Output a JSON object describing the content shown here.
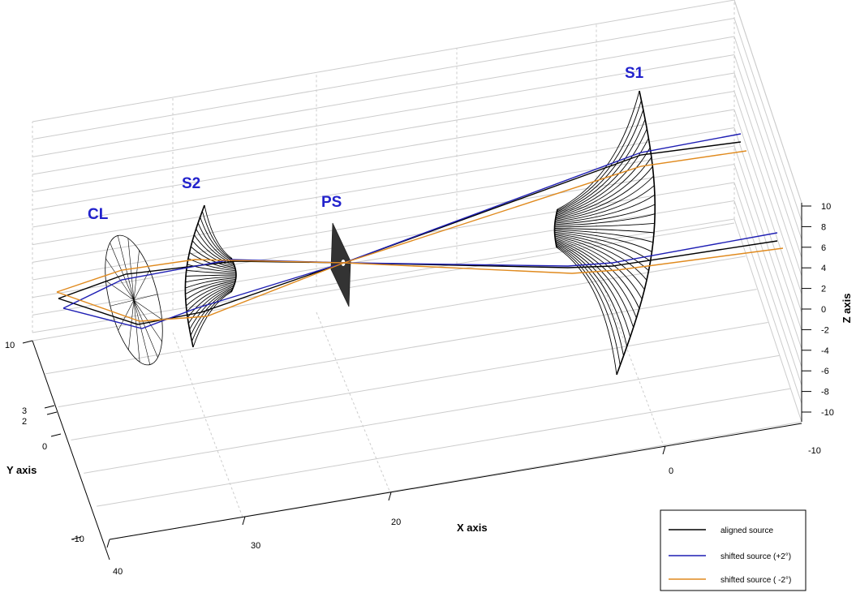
{
  "labels": {
    "cl": "CL",
    "s2": "S2",
    "ps": "PS",
    "s1": "S1"
  },
  "axes": {
    "x_title": "X axis",
    "y_title": "Y axis",
    "z_title": "Z axis",
    "x_ticks": [
      "40",
      "30",
      "20",
      "0"
    ],
    "y_ticks": [
      "10",
      "3",
      "2",
      "0",
      "-10"
    ],
    "z_ticks": [
      "10",
      "8",
      "6",
      "4",
      "2",
      "0",
      "-2",
      "-4",
      "-6",
      "-8",
      "-10"
    ],
    "corner_tick": "-10"
  },
  "legend": {
    "items": [
      {
        "label": "aligned source",
        "color": "#000000"
      },
      {
        "label": "shifted source (+2°)",
        "color": "#1f1fb4"
      },
      {
        "label": "shifted source ( -2°)",
        "color": "#e08a1e"
      }
    ]
  },
  "colors": {
    "aligned": "#000000",
    "shifted_plus": "#1f1fb4",
    "shifted_minus": "#e08a1e",
    "label": "#2222cc",
    "grid": "#cccccc"
  }
}
